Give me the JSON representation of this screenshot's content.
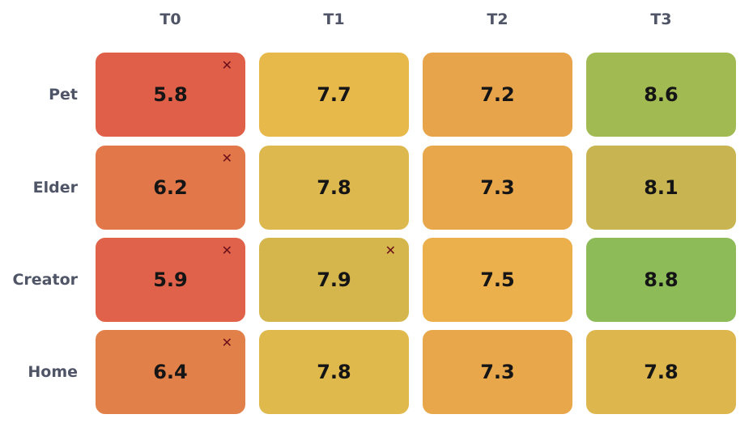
{
  "chart_data": {
    "type": "heatmap",
    "columns": [
      "T0",
      "T1",
      "T2",
      "T3"
    ],
    "rows": [
      "Pet",
      "Elder",
      "Creator",
      "Home"
    ],
    "values": [
      [
        5.8,
        7.7,
        7.2,
        8.6
      ],
      [
        6.2,
        7.8,
        7.3,
        8.1
      ],
      [
        5.9,
        7.9,
        7.5,
        8.8
      ],
      [
        6.4,
        7.8,
        7.3,
        7.8
      ]
    ],
    "flagged": [
      [
        true,
        false,
        false,
        false
      ],
      [
        true,
        false,
        false,
        false
      ],
      [
        true,
        true,
        false,
        false
      ],
      [
        true,
        false,
        false,
        false
      ]
    ],
    "flag_symbol": "✕",
    "colors": [
      [
        "#e05f48",
        "#e7b84a",
        "#e8a44a",
        "#a2ba52"
      ],
      [
        "#e2784a",
        "#dcb84e",
        "#e8a74a",
        "#c8b552"
      ],
      [
        "#e0624a",
        "#d4b64c",
        "#ebb04c",
        "#8dbb58"
      ],
      [
        "#e2804a",
        "#e0b94c",
        "#e8a74a",
        "#ddb64e"
      ]
    ],
    "label_color": "#4f5566",
    "value_color": "#151515",
    "flag_color": "#6b0f1a"
  }
}
